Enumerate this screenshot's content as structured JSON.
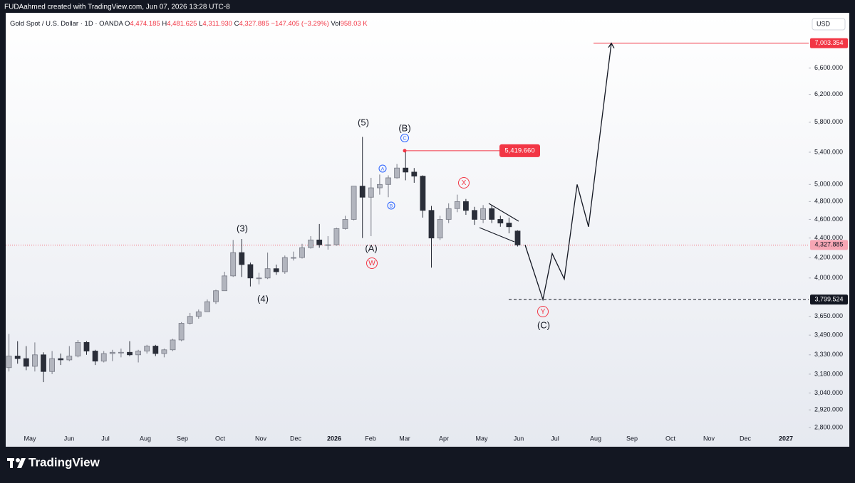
{
  "header": {
    "text": "FUDAahmed created with TradingView.com, Jun 07, 2026 13:28 UTC-8"
  },
  "chart_data": {
    "type": "candlestick",
    "title": "Gold Spot / U.S. Dollar · 1D · OANDA",
    "quote_labels": [
      "O",
      "H",
      "L",
      "C"
    ],
    "quote_values": [
      "4,474.185",
      "4,481.625",
      "4,311.930",
      "4,327.885"
    ],
    "change": "−147.405 (−3.29%)",
    "volume_label": "Vol",
    "volume": "958.03 K",
    "currency": "USD",
    "x_labels": [
      "May",
      "Jun",
      "Jul",
      "Aug",
      "Sep",
      "Oct",
      "Nov",
      "Dec",
      "2026",
      "Feb",
      "Mar",
      "Apr",
      "May",
      "Jun",
      "Jul",
      "Aug",
      "Sep",
      "Oct",
      "Nov",
      "Dec",
      "2027"
    ],
    "open": [
      3230,
      3320,
      3300,
      3240,
      3330,
      3200,
      3300,
      3290,
      3320,
      3430,
      3360,
      3280,
      3340,
      3350,
      3350,
      3330,
      3360,
      3400,
      3340,
      3370,
      3450,
      3590,
      3650,
      3690,
      3780,
      3880,
      4020,
      4250,
      4130,
      4000,
      4000,
      4090,
      4060,
      4200,
      4200,
      4300,
      4380,
      4330,
      4330,
      4500,
      4600,
      4980,
      4850,
      4960,
      5000,
      5080,
      5200,
      5150,
      5100,
      4700,
      4400,
      4600,
      4720,
      4800,
      4700,
      4600,
      4720,
      4600,
      4560,
      4474.185
    ],
    "high": [
      3500,
      3440,
      3400,
      3430,
      3350,
      3360,
      3340,
      3400,
      3450,
      3440,
      3370,
      3360,
      3370,
      3380,
      3440,
      3370,
      3410,
      3410,
      3380,
      3460,
      3600,
      3680,
      3710,
      3800,
      3890,
      4060,
      4380,
      4390,
      4150,
      4050,
      4250,
      4130,
      4220,
      4260,
      4340,
      4420,
      4550,
      4420,
      4510,
      4640,
      4980,
      5600,
      5080,
      5120,
      5110,
      5250,
      5419.66,
      5200,
      5110,
      4750,
      4640,
      4780,
      4880,
      4830,
      4740,
      4760,
      4760,
      4640,
      4620,
      4481.625
    ],
    "low": [
      3200,
      3260,
      3210,
      3200,
      3120,
      3180,
      3250,
      3280,
      3310,
      3330,
      3250,
      3270,
      3280,
      3310,
      3320,
      3270,
      3340,
      3320,
      3310,
      3360,
      3440,
      3580,
      3630,
      3690,
      3760,
      3880,
      4010,
      4010,
      3920,
      3940,
      3990,
      4030,
      4040,
      4170,
      4190,
      4290,
      4300,
      4280,
      4320,
      4490,
      4590,
      4400,
      4420,
      4880,
      4850,
      5070,
      5050,
      5020,
      4620,
      4100,
      4380,
      4560,
      4680,
      4650,
      4540,
      4560,
      4560,
      4520,
      4450,
      4311.93
    ],
    "close": [
      3320,
      3300,
      3240,
      3330,
      3200,
      3300,
      3290,
      3320,
      3430,
      3360,
      3280,
      3340,
      3350,
      3350,
      3330,
      3360,
      3400,
      3340,
      3370,
      3450,
      3590,
      3650,
      3690,
      3780,
      3880,
      4020,
      4250,
      4130,
      4000,
      4000,
      4090,
      4060,
      4200,
      4200,
      4300,
      4380,
      4330,
      4330,
      4500,
      4600,
      4980,
      4850,
      4960,
      5000,
      5080,
      5200,
      5150,
      5100,
      4700,
      4400,
      4600,
      4720,
      4800,
      4700,
      4600,
      4720,
      4600,
      4560,
      4520,
      4327.885
    ],
    "up_color": "#787b86",
    "down_color": "#2a2e39",
    "ylim": [
      2776,
      7480
    ],
    "log_scale": true,
    "yticks": [
      {
        "value": 2800,
        "label": "2,800.000"
      },
      {
        "value": 2920,
        "label": "2,920.000"
      },
      {
        "value": 3040,
        "label": "3,040.000"
      },
      {
        "value": 3180,
        "label": "3,180.000"
      },
      {
        "value": 3330,
        "label": "3,330.000"
      },
      {
        "value": 3490,
        "label": "3,490.000"
      },
      {
        "value": 3650,
        "label": "3,650.000"
      },
      {
        "value": 4000,
        "label": "4,000.000"
      },
      {
        "value": 4200,
        "label": "4,200.000"
      },
      {
        "value": 4400,
        "label": "4,400.000"
      },
      {
        "value": 4600,
        "label": "4,600.000"
      },
      {
        "value": 4800,
        "label": "4,800.000"
      },
      {
        "value": 5000,
        "label": "5,000.000"
      },
      {
        "value": 5400,
        "label": "5,400.000"
      },
      {
        "value": 5800,
        "label": "5,800.000"
      },
      {
        "value": 6200,
        "label": "6,200.000"
      },
      {
        "value": 6600,
        "label": "6,600.000"
      }
    ],
    "price_labels": [
      {
        "value": 7003.354,
        "label": "7,003.354",
        "color": "#f23645"
      },
      {
        "value": 4327.885,
        "label": "4,327.885",
        "color": "#f7a6b4"
      },
      {
        "value": 3799.524,
        "label": "3,799.524",
        "color": "#131722"
      }
    ],
    "level": {
      "value": 5419.66,
      "label": "5,419.660",
      "color": "#f23645"
    },
    "projection": [
      4327.885,
      3799.524,
      4240,
      3990,
      5000,
      4520,
      7003.354
    ],
    "wave_labels": [
      "(5)",
      "(B)",
      "(3)",
      "(A)",
      "(4)",
      "(C)"
    ],
    "circled_labels": [
      "C",
      "A",
      "B",
      "W",
      "X",
      "Y"
    ]
  },
  "footer": {
    "brand": "TradingView"
  }
}
